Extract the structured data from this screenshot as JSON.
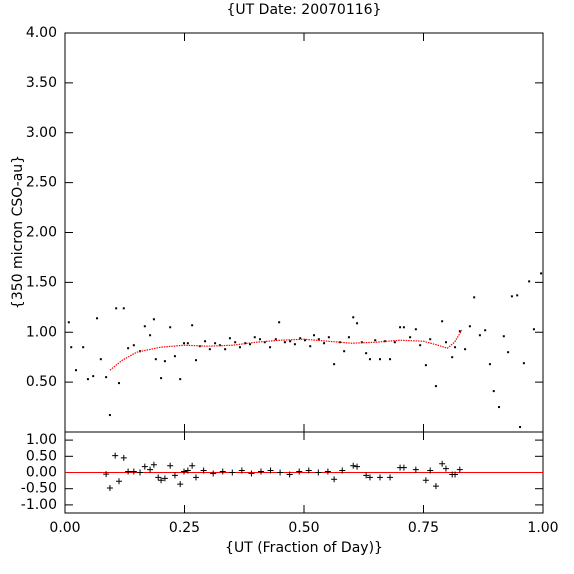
{
  "chart_data": [
    {
      "type": "scatter",
      "title": "{UT Date: 20070116}",
      "y_label": "{350 micron CSO-au}",
      "xlim": [
        0,
        1
      ],
      "ylim": [
        0,
        4
      ],
      "yticks": [
        {
          "value": 0.5,
          "label": "0.50"
        },
        {
          "value": 1,
          "label": "1.00"
        },
        {
          "value": 1.5,
          "label": "1.50"
        },
        {
          "value": 2,
          "label": "2.00"
        },
        {
          "value": 2.5,
          "label": "2.50"
        },
        {
          "value": 3,
          "label": "3.00"
        },
        {
          "value": 3.5,
          "label": "3.50"
        },
        {
          "value": 4,
          "label": "4.00"
        }
      ],
      "series": [
        {
          "marker": "square",
          "color": "#000000",
          "x": [
            0.008,
            0.013,
            0.023,
            0.038,
            0.048,
            0.059,
            0.067,
            0.075,
            0.086,
            0.094,
            0.107,
            0.113,
            0.123,
            0.132,
            0.144,
            0.157,
            0.167,
            0.178,
            0.186,
            0.19,
            0.201,
            0.209,
            0.22,
            0.23,
            0.241,
            0.249,
            0.257,
            0.266,
            0.274,
            0.282,
            0.293,
            0.303,
            0.314,
            0.324,
            0.335,
            0.345,
            0.356,
            0.366,
            0.377,
            0.387,
            0.397,
            0.408,
            0.418,
            0.429,
            0.441,
            0.448,
            0.46,
            0.471,
            0.481,
            0.492,
            0.502,
            0.513,
            0.521,
            0.531,
            0.542,
            0.552,
            0.563,
            0.575,
            0.584,
            0.594,
            0.603,
            0.611,
            0.621,
            0.63,
            0.638,
            0.649,
            0.659,
            0.669,
            0.68,
            0.69,
            0.701,
            0.709,
            0.722,
            0.734,
            0.743,
            0.755,
            0.764,
            0.776,
            0.789,
            0.797,
            0.81,
            0.816,
            0.826,
            0.837,
            0.847,
            0.856,
            0.868,
            0.879,
            0.889,
            0.897,
            0.908,
            0.918,
            0.927,
            0.935,
            0.946,
            0.952,
            0.96,
            0.971,
            0.981,
            0.996
          ],
          "values": [
            1.1,
            0.85,
            0.62,
            0.85,
            0.53,
            0.56,
            1.14,
            0.73,
            0.55,
            0.17,
            1.24,
            0.49,
            1.24,
            0.84,
            0.87,
            0.81,
            1.06,
            0.97,
            1.13,
            0.73,
            0.54,
            0.71,
            1.05,
            0.76,
            0.53,
            0.89,
            0.89,
            1.07,
            0.72,
            0.86,
            0.91,
            0.83,
            0.89,
            0.87,
            0.83,
            0.94,
            0.9,
            0.85,
            0.89,
            0.88,
            0.95,
            0.93,
            0.9,
            0.85,
            0.93,
            1.1,
            0.9,
            0.91,
            0.88,
            0.94,
            0.92,
            0.86,
            0.97,
            0.93,
            0.89,
            0.95,
            0.68,
            0.9,
            0.81,
            0.95,
            1.15,
            1.09,
            0.9,
            0.79,
            0.73,
            0.92,
            0.73,
            0.91,
            0.73,
            0.9,
            1.05,
            1.05,
            0.95,
            1.03,
            0.87,
            0.67,
            0.93,
            0.46,
            1.11,
            0.9,
            0.75,
            0.85,
            1.01,
            0.83,
            1.06,
            1.35,
            0.97,
            1.02,
            0.68,
            0.41,
            0.25,
            0.96,
            0.8,
            1.36,
            1.37,
            0.05,
            0.69,
            1.51,
            1.03,
            1.59
          ]
        },
        {
          "marker": "line",
          "color": "#ff0000",
          "x": [
            0.094,
            0.12,
            0.15,
            0.2,
            0.25,
            0.3,
            0.35,
            0.4,
            0.45,
            0.5,
            0.55,
            0.6,
            0.65,
            0.7,
            0.75,
            0.78,
            0.8,
            0.815,
            0.83
          ],
          "values": [
            0.62,
            0.72,
            0.8,
            0.85,
            0.87,
            0.86,
            0.87,
            0.9,
            0.92,
            0.93,
            0.91,
            0.89,
            0.9,
            0.92,
            0.91,
            0.87,
            0.84,
            0.9,
            1.02
          ]
        }
      ]
    },
    {
      "type": "scatter",
      "x_label": "{UT (Fraction of Day)}",
      "xlim": [
        0,
        1
      ],
      "ylim": [
        -1.25,
        1.25
      ],
      "xticks": [
        {
          "value": 0,
          "label": "0.00"
        },
        {
          "value": 0.25,
          "label": "0.25"
        },
        {
          "value": 0.5,
          "label": "0.50"
        },
        {
          "value": 0.75,
          "label": "0.75"
        },
        {
          "value": 1,
          "label": "1.00"
        }
      ],
      "yticks": [
        {
          "value": -1,
          "label": "-1.00"
        },
        {
          "value": -0.5,
          "label": "-0.50"
        },
        {
          "value": 0,
          "label": "0.00"
        },
        {
          "value": 0.5,
          "label": "0.50"
        },
        {
          "value": 1,
          "label": "1.00"
        }
      ],
      "hline": {
        "value": 0,
        "color": "#ff0000"
      },
      "series": [
        {
          "marker": "plus",
          "color": "#000000",
          "x": [
            0.086,
            0.094,
            0.105,
            0.113,
            0.123,
            0.132,
            0.144,
            0.157,
            0.167,
            0.178,
            0.186,
            0.195,
            0.201,
            0.209,
            0.22,
            0.23,
            0.241,
            0.249,
            0.257,
            0.266,
            0.274,
            0.29,
            0.31,
            0.33,
            0.35,
            0.37,
            0.39,
            0.41,
            0.43,
            0.45,
            0.47,
            0.49,
            0.51,
            0.53,
            0.55,
            0.563,
            0.58,
            0.603,
            0.611,
            0.63,
            0.638,
            0.659,
            0.68,
            0.701,
            0.709,
            0.734,
            0.755,
            0.764,
            0.776,
            0.789,
            0.797,
            0.81,
            0.816,
            0.826
          ],
          "values": [
            -0.05,
            -0.48,
            0.52,
            -0.27,
            0.45,
            0.03,
            0.03,
            0.0,
            0.18,
            0.09,
            0.24,
            -0.15,
            -0.24,
            -0.18,
            0.21,
            -0.09,
            -0.36,
            0.03,
            0.06,
            0.21,
            -0.15,
            0.06,
            -0.03,
            0.03,
            0.0,
            0.06,
            -0.03,
            0.03,
            0.06,
            0.0,
            -0.06,
            0.03,
            0.06,
            0.0,
            0.03,
            -0.21,
            0.06,
            0.21,
            0.18,
            -0.09,
            -0.15,
            -0.15,
            -0.15,
            0.15,
            0.15,
            0.09,
            -0.24,
            0.06,
            -0.42,
            0.27,
            0.12,
            -0.06,
            -0.06,
            0.09
          ]
        }
      ]
    }
  ]
}
